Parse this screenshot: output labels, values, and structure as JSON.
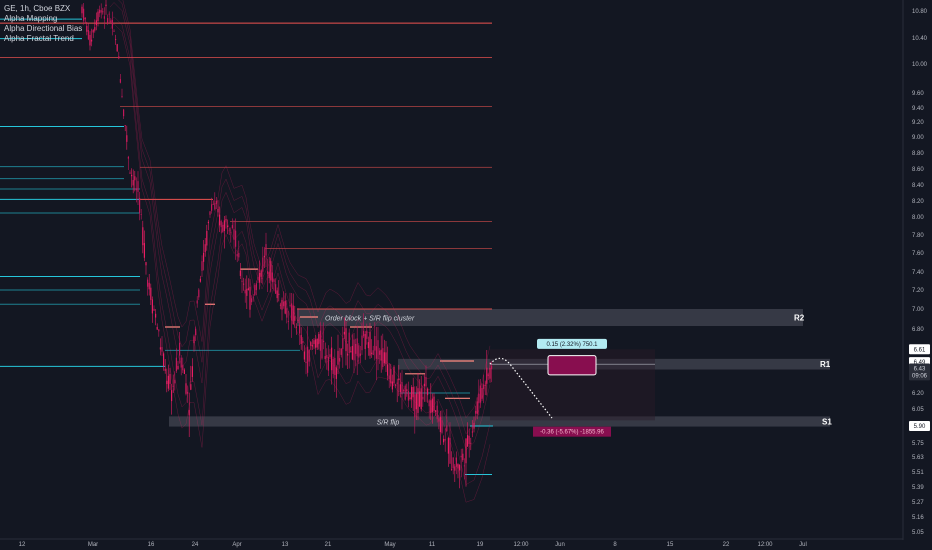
{
  "legend": {
    "symbol": "GE, 1h, Cboe BZX",
    "indicators": [
      "Alpha Mapping",
      "Alpha Directional Bias",
      "Alpha Fractal Trend"
    ]
  },
  "colors": {
    "background": "#131722",
    "candle_up": "#c2185b",
    "candle_down": "#e91e63",
    "resistance": "#ef5350",
    "support": "#26c6da",
    "zone": "#434651",
    "target_up": "#b2ebf2",
    "target_down": "#880e4f"
  },
  "chart_data": {
    "type": "candlestick",
    "y_axis_ticks": [
      "10.80",
      "10.40",
      "10.00",
      "9.60",
      "9.40",
      "9.20",
      "9.00",
      "8.80",
      "8.60",
      "8.40",
      "8.20",
      "8.00",
      "7.80",
      "7.60",
      "7.40",
      "7.20",
      "7.00",
      "6.80",
      "6.20",
      "6.05",
      "5.90",
      "5.75",
      "5.63",
      "5.51",
      "5.39",
      "5.27",
      "5.16",
      "5.05"
    ],
    "x_axis_ticks": [
      "12",
      "Mar",
      "16",
      "24",
      "Apr",
      "13",
      "21",
      "May",
      "11",
      "19",
      "12:00",
      "Jun",
      "8",
      "15",
      "22",
      "12:00",
      "Jul"
    ],
    "ylim": [
      4.96,
      11.0
    ],
    "price_tags": [
      {
        "label": "6.61",
        "value": 6.61,
        "style": "white"
      },
      {
        "label": "6.49",
        "value": 6.49,
        "style": "white"
      },
      {
        "label": "6.43",
        "value": 6.43,
        "style": "grey"
      },
      {
        "label": "09:06",
        "value": 6.365,
        "style": "grey"
      },
      {
        "label": "5.90",
        "value": 5.9,
        "style": "white"
      }
    ],
    "zones": [
      {
        "name": "R2",
        "label": "Order block + S/R flip cluster",
        "low": 6.83,
        "high": 7.0
      },
      {
        "name": "R1",
        "label": "",
        "low": 6.42,
        "high": 6.52
      },
      {
        "name": "S1",
        "label": "S/R flip",
        "low": 5.895,
        "high": 5.985
      }
    ],
    "projection": {
      "up_label": "0.15 (2.32%) 750.1",
      "down_label": "-0.36 (-5.67%) -1855.96"
    }
  }
}
